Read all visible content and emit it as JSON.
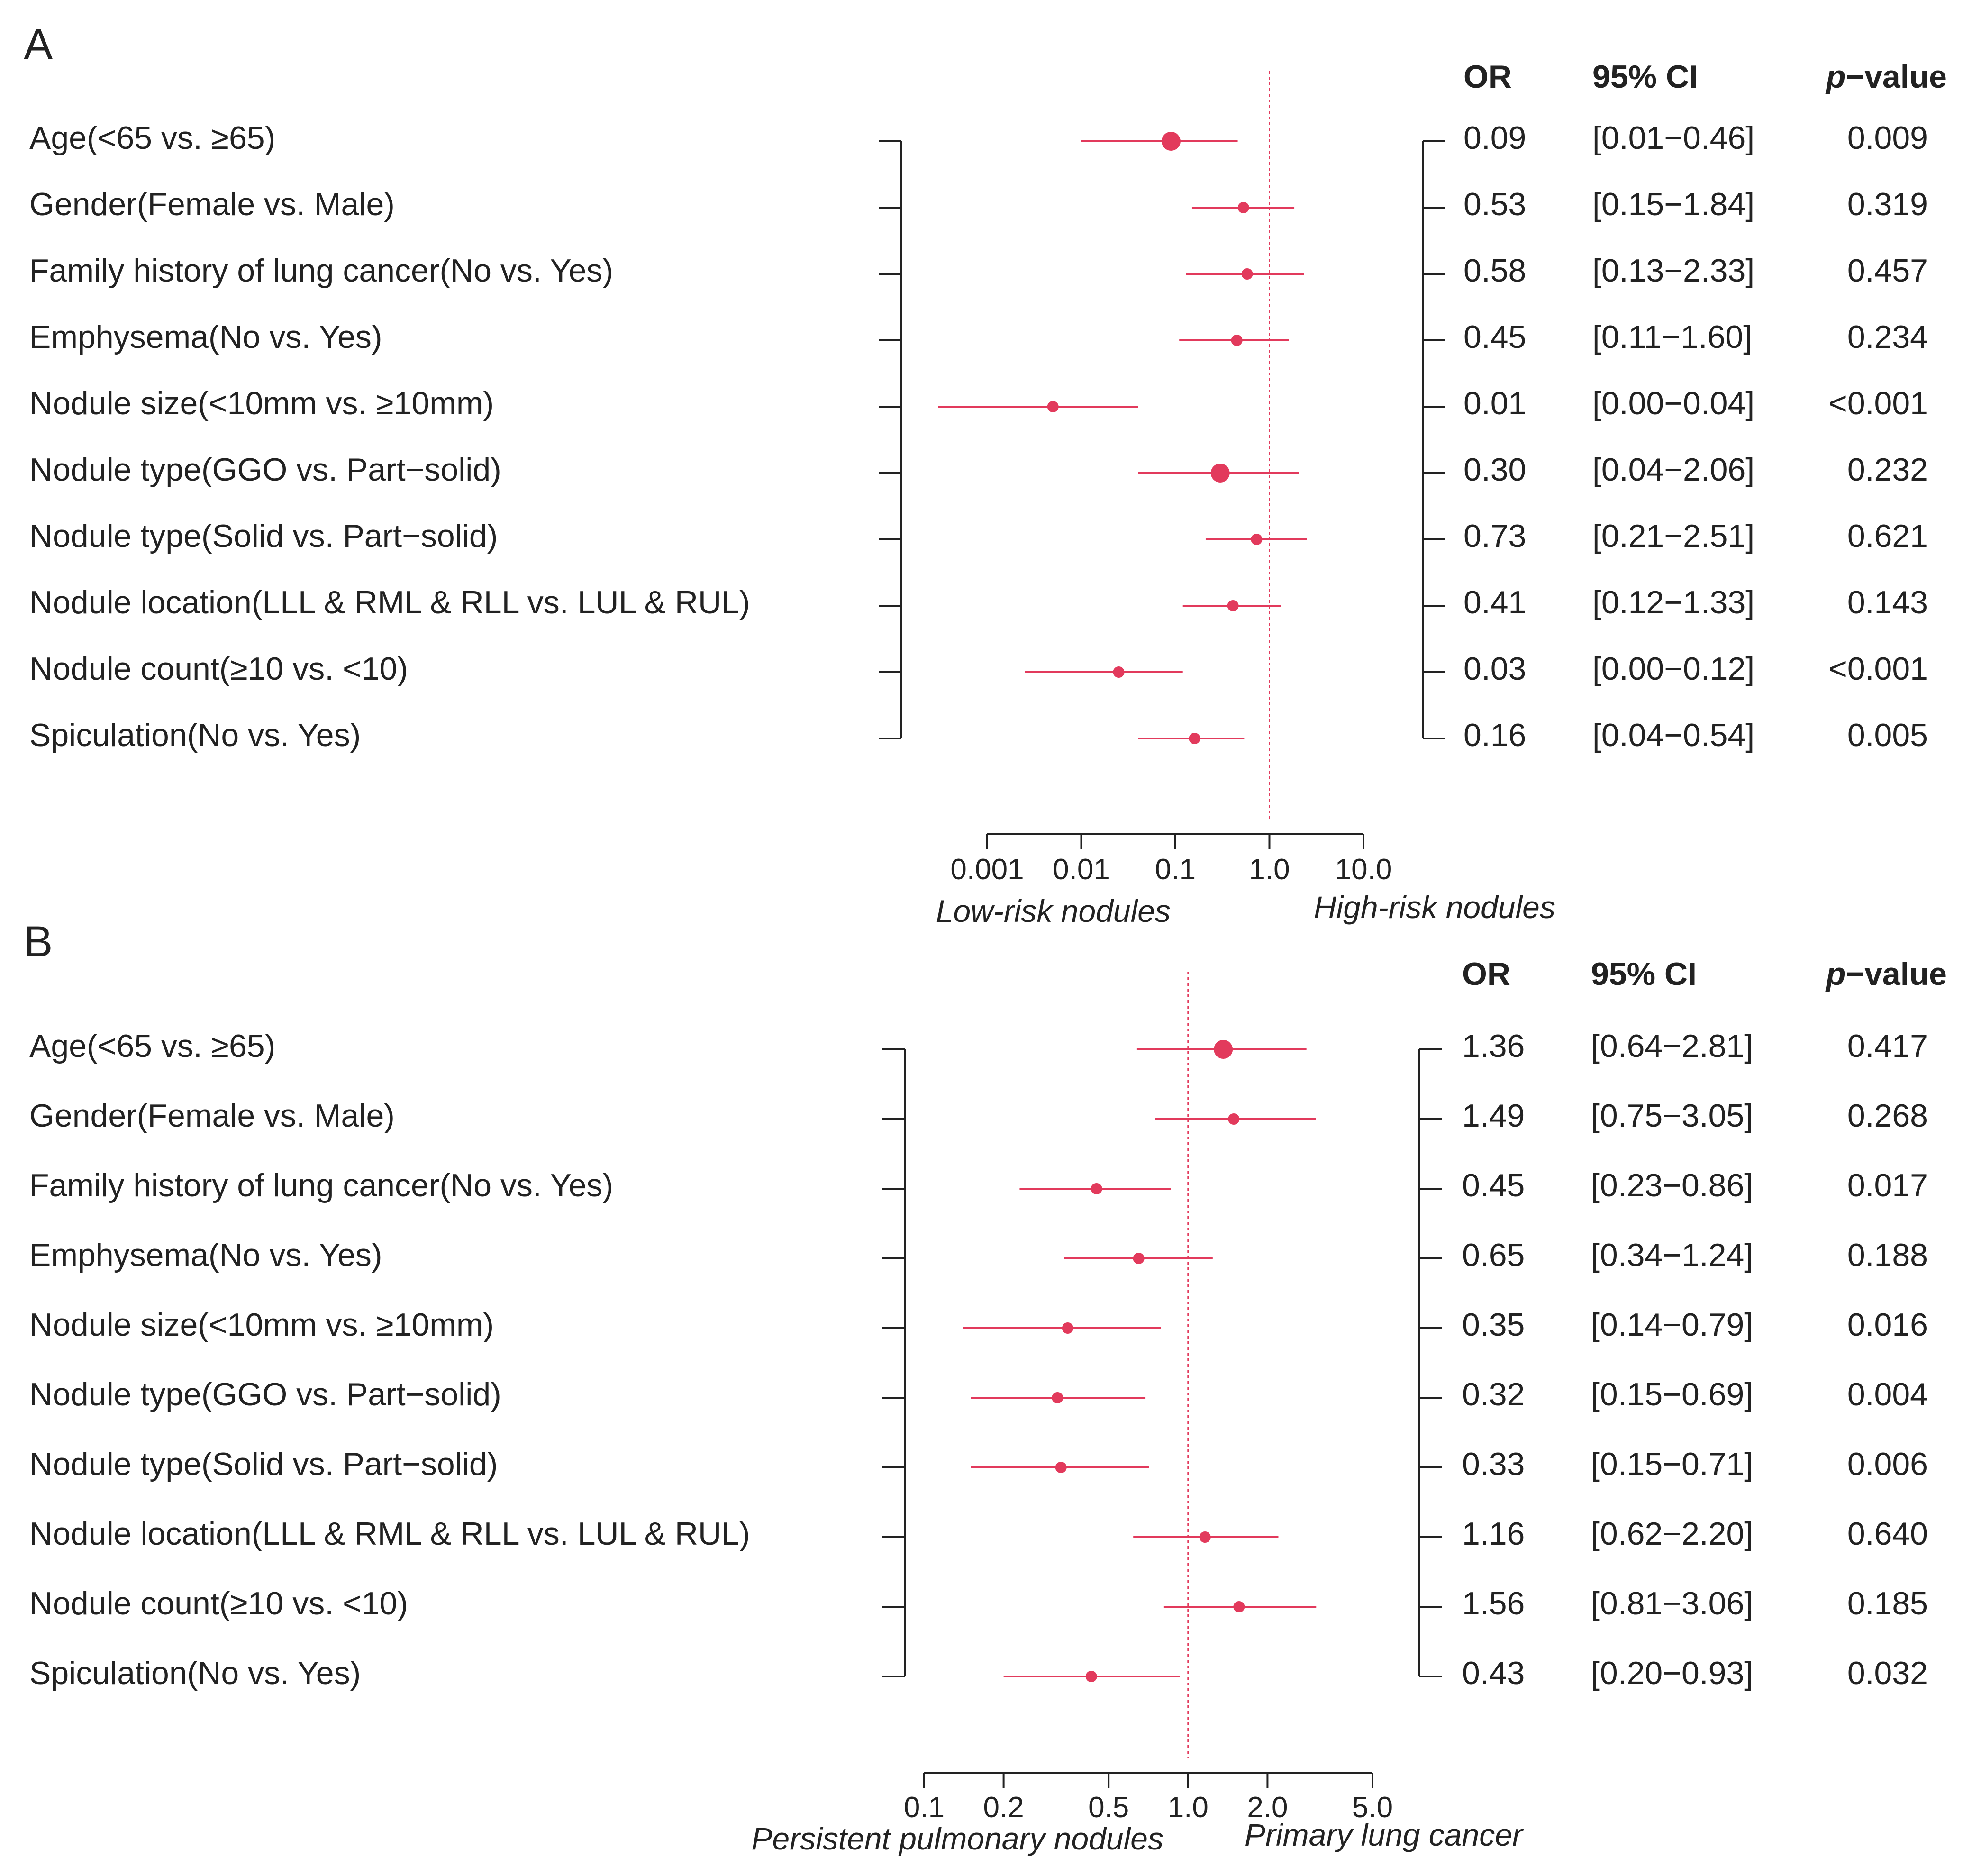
{
  "headers": {
    "or": "OR",
    "ci": "95% CI",
    "p_italic": "p",
    "p_rest": "−value"
  },
  "chart_data": [
    {
      "type": "forest",
      "panel": "A",
      "scale": "log",
      "xlim": [
        0.001,
        10.0
      ],
      "reference": 1.0,
      "ticks": [
        0.001,
        0.01,
        0.1,
        1.0,
        10.0
      ],
      "tick_labels": [
        "0.001",
        "0.01",
        "0.1",
        "1.0",
        "10.0"
      ],
      "left_label": "Low-risk nodules",
      "right_label": "High-risk nodules",
      "rows": [
        {
          "label": "Age(<65 vs. ≥65)",
          "or": 0.09,
          "lo": 0.01,
          "hi": 0.46,
          "or_txt": "0.09",
          "ci_txt": "[0.01−0.46]",
          "p_txt": "0.009",
          "big": true
        },
        {
          "label": "Gender(Female vs. Male)",
          "or": 0.53,
          "lo": 0.15,
          "hi": 1.84,
          "or_txt": "0.53",
          "ci_txt": "[0.15−1.84]",
          "p_txt": "0.319",
          "big": false
        },
        {
          "label": "Family history of lung cancer(No vs. Yes)",
          "or": 0.58,
          "lo": 0.13,
          "hi": 2.33,
          "or_txt": "0.58",
          "ci_txt": "[0.13−2.33]",
          "p_txt": "0.457",
          "big": false
        },
        {
          "label": "Emphysema(No vs. Yes)",
          "or": 0.45,
          "lo": 0.11,
          "hi": 1.6,
          "or_txt": "0.45",
          "ci_txt": "[0.11−1.60]",
          "p_txt": "0.234",
          "big": false
        },
        {
          "label": "Nodule size(<10mm vs. ≥10mm)",
          "or": 0.005,
          "lo": 0.0003,
          "hi": 0.04,
          "or_txt": "0.01",
          "ci_txt": "[0.00−0.04]",
          "p_txt": "<0.001",
          "big": false
        },
        {
          "label": "Nodule type(GGO vs. Part−solid)",
          "or": 0.3,
          "lo": 0.04,
          "hi": 2.06,
          "or_txt": "0.30",
          "ci_txt": "[0.04−2.06]",
          "p_txt": "0.232",
          "big": true
        },
        {
          "label": "Nodule type(Solid vs. Part−solid)",
          "or": 0.73,
          "lo": 0.21,
          "hi": 2.51,
          "or_txt": "0.73",
          "ci_txt": "[0.21−2.51]",
          "p_txt": "0.621",
          "big": false
        },
        {
          "label": "Nodule location(LLL & RML & RLL vs. LUL & RUL)",
          "or": 0.41,
          "lo": 0.12,
          "hi": 1.33,
          "or_txt": "0.41",
          "ci_txt": "[0.12−1.33]",
          "p_txt": "0.143",
          "big": false
        },
        {
          "label": "Nodule count(≥10 vs. <10)",
          "or": 0.025,
          "lo": 0.0025,
          "hi": 0.12,
          "or_txt": "0.03",
          "ci_txt": "[0.00−0.12]",
          "p_txt": "<0.001",
          "big": false
        },
        {
          "label": "Spiculation(No vs. Yes)",
          "or": 0.16,
          "lo": 0.04,
          "hi": 0.54,
          "or_txt": "0.16",
          "ci_txt": "[0.04−0.54]",
          "p_txt": "0.005",
          "big": false
        }
      ]
    },
    {
      "type": "forest",
      "panel": "B",
      "scale": "log",
      "xlim": [
        0.1,
        5.0
      ],
      "reference": 1.0,
      "ticks": [
        0.1,
        0.2,
        0.5,
        1.0,
        2.0,
        5.0
      ],
      "tick_labels": [
        "0.1",
        "0.2",
        "0.5",
        "1.0",
        "2.0",
        "5.0"
      ],
      "left_label": "Persistent pulmonary nodules",
      "right_label": "Primary lung cancer",
      "rows": [
        {
          "label": "Age(<65 vs. ≥65)",
          "or": 1.36,
          "lo": 0.64,
          "hi": 2.81,
          "or_txt": "1.36",
          "ci_txt": "[0.64−2.81]",
          "p_txt": "0.417",
          "big": true
        },
        {
          "label": "Gender(Female vs. Male)",
          "or": 1.49,
          "lo": 0.75,
          "hi": 3.05,
          "or_txt": "1.49",
          "ci_txt": "[0.75−3.05]",
          "p_txt": "0.268",
          "big": false
        },
        {
          "label": "Family history of lung cancer(No vs. Yes)",
          "or": 0.45,
          "lo": 0.23,
          "hi": 0.86,
          "or_txt": "0.45",
          "ci_txt": "[0.23−0.86]",
          "p_txt": "0.017",
          "big": false
        },
        {
          "label": "Emphysema(No vs. Yes)",
          "or": 0.65,
          "lo": 0.34,
          "hi": 1.24,
          "or_txt": "0.65",
          "ci_txt": "[0.34−1.24]",
          "p_txt": "0.188",
          "big": false
        },
        {
          "label": "Nodule size(<10mm vs. ≥10mm)",
          "or": 0.35,
          "lo": 0.14,
          "hi": 0.79,
          "or_txt": "0.35",
          "ci_txt": "[0.14−0.79]",
          "p_txt": "0.016",
          "big": false
        },
        {
          "label": "Nodule type(GGO vs. Part−solid)",
          "or": 0.32,
          "lo": 0.15,
          "hi": 0.69,
          "or_txt": "0.32",
          "ci_txt": "[0.15−0.69]",
          "p_txt": "0.004",
          "big": false
        },
        {
          "label": "Nodule type(Solid vs. Part−solid)",
          "or": 0.33,
          "lo": 0.15,
          "hi": 0.71,
          "or_txt": "0.33",
          "ci_txt": "[0.15−0.71]",
          "p_txt": "0.006",
          "big": false
        },
        {
          "label": "Nodule location(LLL & RML & RLL vs. LUL & RUL)",
          "or": 1.16,
          "lo": 0.62,
          "hi": 2.2,
          "or_txt": "1.16",
          "ci_txt": "[0.62−2.20]",
          "p_txt": "0.640",
          "big": false
        },
        {
          "label": "Nodule count(≥10 vs. <10)",
          "or": 1.56,
          "lo": 0.81,
          "hi": 3.06,
          "or_txt": "1.56",
          "ci_txt": "[0.81−3.06]",
          "p_txt": "0.185",
          "big": false
        },
        {
          "label": "Spiculation(No vs. Yes)",
          "or": 0.43,
          "lo": 0.2,
          "hi": 0.93,
          "or_txt": "0.43",
          "ci_txt": "[0.20−0.93]",
          "p_txt": "0.032",
          "big": false
        }
      ]
    }
  ]
}
